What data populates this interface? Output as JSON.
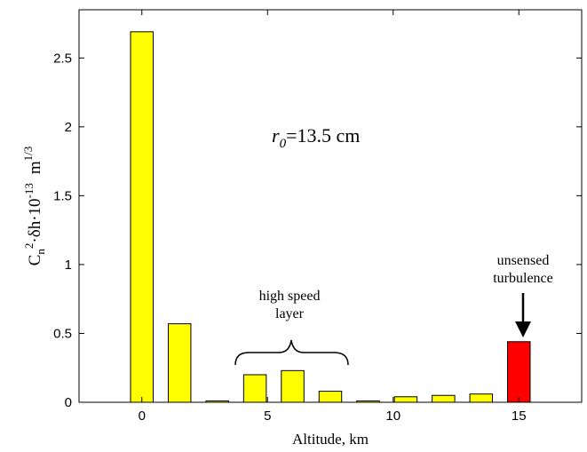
{
  "chart_data": {
    "type": "bar",
    "x": [
      0,
      1.5,
      3,
      4.5,
      6,
      7.5,
      9,
      10.5,
      12,
      13.5,
      15
    ],
    "values": [
      2.69,
      0.57,
      0.01,
      0.2,
      0.23,
      0.08,
      0.01,
      0.04,
      0.05,
      0.06,
      0.44
    ],
    "highlight_index": 10,
    "colors": {
      "bar": "#ffff00",
      "highlight": "#ff0000",
      "edge": "#000000"
    },
    "xlabel": "Altitude, km",
    "ylabel": {
      "parts": [
        "C",
        "n",
        "2",
        "·δh·10",
        "-13",
        "m",
        "1/3"
      ]
    },
    "xlim": [
      -2.5,
      17.5
    ],
    "ylim": [
      0,
      2.85
    ],
    "xticks": [
      0,
      5,
      10,
      15
    ],
    "yticks": [
      0,
      0.5,
      1,
      1.5,
      2,
      2.5
    ],
    "xtick_labels": [
      "0",
      "5",
      "10",
      "15"
    ],
    "ytick_labels": [
      "0",
      "0.5",
      "1",
      "1.5",
      "2",
      "2.5"
    ],
    "r0_label": {
      "symbol": "r",
      "subscript": "0",
      "value": "=13.5 cm"
    },
    "annotations": {
      "high_speed_layer": [
        "high speed",
        "layer"
      ],
      "unsensed_turbulence": [
        "unsensed",
        "turbulence"
      ]
    },
    "grid": false
  }
}
